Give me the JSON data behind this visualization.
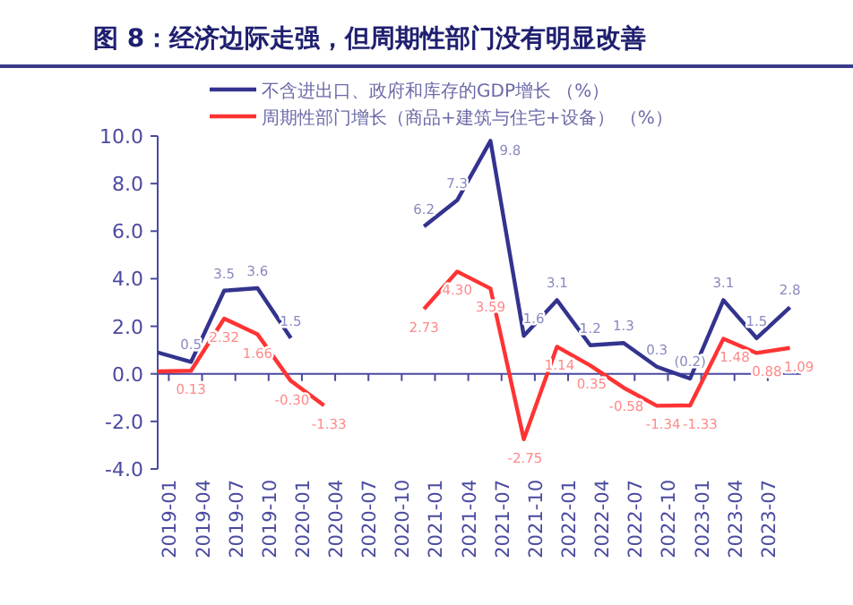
{
  "chart_data": {
    "type": "line",
    "title": "图 8：经济边际走强，但周期性部门没有明显改善",
    "x": [
      "2018-12",
      "2019-03",
      "2019-06",
      "2019-09",
      "2019-12",
      "2020-03",
      "2020-06",
      "2020-09",
      "2020-12",
      "2021-03",
      "2021-06",
      "2021-09",
      "2021-12",
      "2022-03",
      "2022-06",
      "2022-09",
      "2022-12",
      "2023-03",
      "2023-06",
      "2023-09"
    ],
    "series": [
      {
        "name": "不含进出口、政府和库存的GDP增长 （%）",
        "color": "#33338f",
        "values": [
          0.9,
          0.5,
          3.5,
          3.6,
          1.5,
          null,
          null,
          null,
          6.2,
          7.3,
          9.8,
          1.6,
          3.1,
          1.2,
          1.3,
          0.3,
          -0.2,
          3.1,
          1.5,
          2.8
        ],
        "value_labels": [
          null,
          "0.5",
          "3.5",
          "3.6",
          "1.5",
          null,
          null,
          null,
          "6.2",
          "7.3",
          "9.8",
          "1.6",
          "3.1",
          "1.2",
          "1.3",
          "0.3",
          "(0.2)",
          "3.1",
          "1.5",
          "2.8"
        ]
      },
      {
        "name": "周期性部门增长（商品+建筑与住宅+设备）  （%）",
        "color": "#ff3333",
        "values": [
          0.1,
          0.13,
          2.32,
          1.66,
          -0.3,
          -1.33,
          null,
          null,
          2.73,
          4.3,
          3.59,
          -2.75,
          1.14,
          0.35,
          -0.58,
          -1.34,
          -1.33,
          1.48,
          0.88,
          1.09
        ],
        "value_labels": [
          null,
          "0.13",
          "2.32",
          "1.66",
          "-0.30",
          "-1.33",
          null,
          null,
          "2.73",
          "4.30",
          "3.59",
          "-2.75",
          "1.14",
          "0.35",
          "-0.58",
          "-1.34",
          "-1.33",
          "1.48",
          "0.88",
          "1.09"
        ]
      }
    ],
    "xlim": [
      "2018-12",
      "2023-10"
    ],
    "xticks": [
      "2019-01",
      "2019-04",
      "2019-07",
      "2019-10",
      "2020-01",
      "2020-04",
      "2020-07",
      "2020-10",
      "2021-01",
      "2021-04",
      "2021-07",
      "2021-10",
      "2022-01",
      "2022-04",
      "2022-07",
      "2022-10",
      "2023-01",
      "2023-04",
      "2023-07"
    ],
    "ylim": [
      -4,
      10
    ],
    "yticks": [
      {
        "value": 10,
        "label": "10.0"
      },
      {
        "value": 8,
        "label": "8.0"
      },
      {
        "value": 6,
        "label": "6.0"
      },
      {
        "value": 4,
        "label": "4.0"
      },
      {
        "value": 2,
        "label": "2.0"
      },
      {
        "value": 0,
        "label": "0.0"
      },
      {
        "value": -2,
        "label": "-2.0"
      },
      {
        "value": -4,
        "label": "-4.0"
      }
    ],
    "ref_lines": [
      {
        "axis": "y",
        "value": 0,
        "color": "#4a4aa0"
      }
    ],
    "legend": "top"
  }
}
